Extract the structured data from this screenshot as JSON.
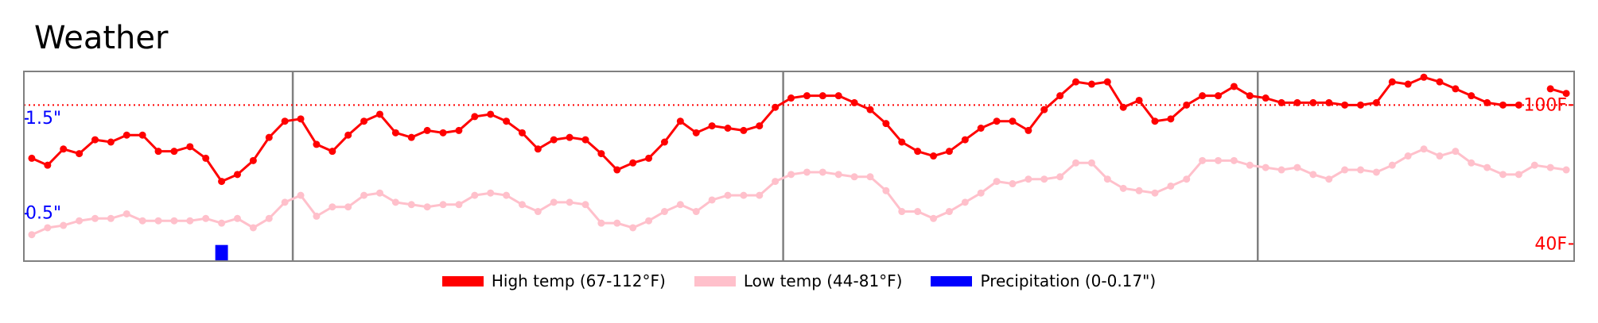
{
  "chart_data": {
    "type": "line",
    "title": "Weather",
    "xlim": [
      0,
      98
    ],
    "dividers": [
      17,
      48,
      78
    ],
    "ylim": [
      0,
      2
    ],
    "yticks": [
      {
        "value": 0.5,
        "label": "0.5\""
      },
      {
        "value": 1.5,
        "label": "1.5\""
      }
    ],
    "y2lim": [
      32.6,
      114.5
    ],
    "y2ticks": [
      {
        "value": 40,
        "label": "40F"
      },
      {
        "value": 100,
        "label": "100F"
      }
    ],
    "y2_reference": 100,
    "series": [
      {
        "name": "High temp (67-112°F)",
        "type": "line",
        "axis": "y2",
        "color": "#ff0000",
        "values": [
          77,
          74,
          81,
          79,
          85,
          84,
          87,
          87,
          80,
          80,
          82,
          77,
          67,
          70,
          76,
          86,
          93,
          94,
          83,
          80,
          87,
          93,
          96,
          88,
          86,
          89,
          88,
          89,
          95,
          96,
          93,
          88,
          81,
          85,
          86,
          85,
          79,
          72,
          75,
          77,
          84,
          93,
          88,
          91,
          90,
          89,
          91,
          99,
          103,
          104,
          104,
          104,
          101,
          98,
          92,
          84,
          80,
          78,
          80,
          85,
          90,
          93,
          93,
          89,
          98,
          104,
          110,
          109,
          110,
          99,
          102,
          93,
          94,
          100,
          104,
          104,
          108,
          104,
          103,
          101,
          101,
          101,
          101,
          100,
          100,
          101,
          110,
          109,
          112,
          110,
          107,
          104,
          101,
          100,
          100,
          null,
          107,
          105
        ]
      },
      {
        "name": "Low temp (44-81°F)",
        "type": "line",
        "axis": "y2",
        "color": "#ffc0cb",
        "values": [
          44,
          47,
          48,
          50,
          51,
          51,
          53,
          50,
          50,
          50,
          50,
          51,
          49,
          51,
          47,
          51,
          58,
          61,
          52,
          56,
          56,
          61,
          62,
          58,
          57,
          56,
          57,
          57,
          61,
          62,
          61,
          57,
          54,
          58,
          58,
          57,
          49,
          49,
          47,
          50,
          54,
          57,
          54,
          59,
          61,
          61,
          61,
          67,
          70,
          71,
          71,
          70,
          69,
          69,
          63,
          54,
          54,
          51,
          54,
          58,
          62,
          67,
          66,
          68,
          68,
          69,
          75,
          75,
          68,
          64,
          63,
          62,
          65,
          68,
          76,
          76,
          76,
          74,
          73,
          72,
          73,
          70,
          68,
          72,
          72,
          71,
          74,
          78,
          81,
          78,
          80,
          75,
          73,
          70,
          70,
          74,
          73,
          72
        ]
      },
      {
        "name": "Precipitation (0-0.17\")",
        "type": "bar",
        "axis": "y",
        "color": "#0000ff",
        "values": [
          0,
          0,
          0,
          0,
          0,
          0,
          0,
          0,
          0,
          0,
          0,
          0,
          0.17,
          0,
          0,
          0,
          0,
          0,
          0,
          0,
          0,
          0,
          0,
          0,
          0,
          0,
          0,
          0,
          0,
          0,
          0,
          0,
          0,
          0,
          0,
          0,
          0,
          0,
          0,
          0,
          0,
          0,
          0,
          0,
          0,
          0,
          0,
          0,
          0,
          0,
          0,
          0,
          0,
          0,
          0,
          0,
          0,
          0,
          0,
          0,
          0,
          0,
          0,
          0,
          0,
          0,
          0,
          0,
          0,
          0,
          0,
          0,
          0,
          0,
          0,
          0,
          0,
          0,
          0,
          0,
          0,
          0,
          0,
          0,
          0,
          0,
          0,
          0,
          0,
          0,
          0,
          0,
          0,
          0,
          0,
          0,
          0,
          0
        ]
      }
    ]
  }
}
